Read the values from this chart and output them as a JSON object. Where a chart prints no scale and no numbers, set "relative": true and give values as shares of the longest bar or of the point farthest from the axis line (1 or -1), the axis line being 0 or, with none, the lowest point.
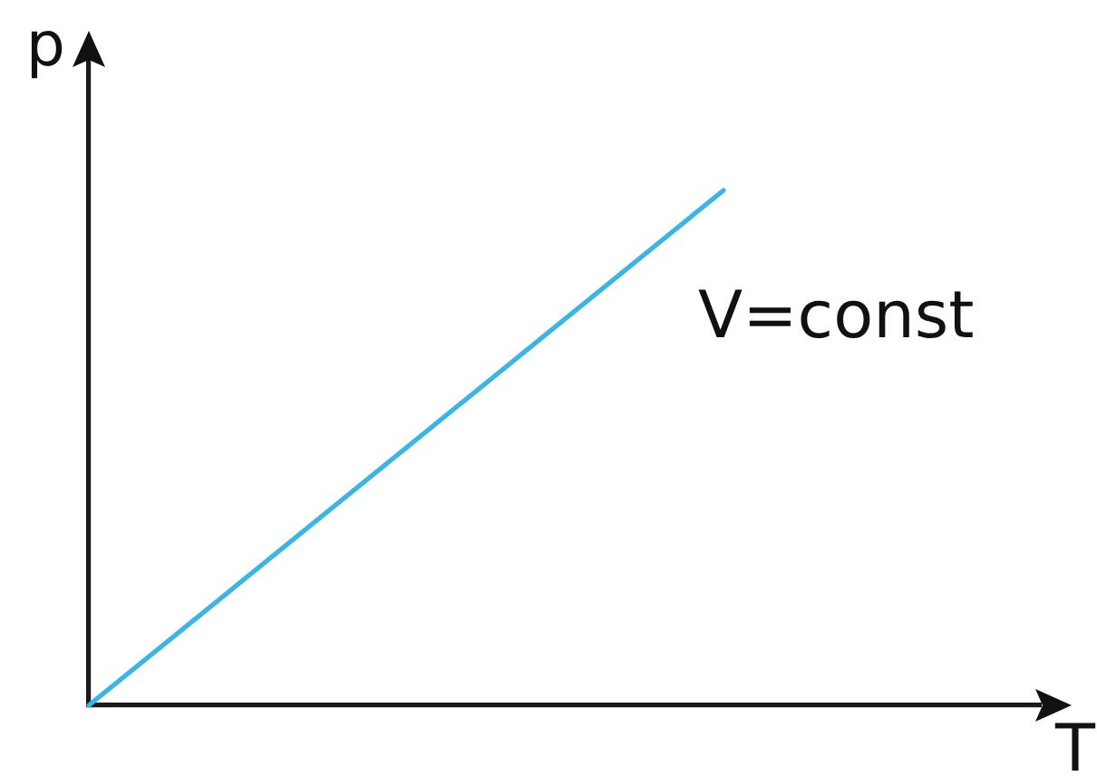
{
  "chart_data": {
    "type": "line",
    "xlabel": "T",
    "ylabel": "p",
    "categories": [
      null,
      null,
      null,
      null
    ],
    "values": [
      0,
      0.5,
      1,
      null
    ],
    "color": "#3bb4e6",
    "relative": true,
    "tick_labels": false,
    "grid": false,
    "legend": false,
    "marker": "none",
    "line_style": "solid",
    "annotations": [
      "V=const"
    ]
  }
}
